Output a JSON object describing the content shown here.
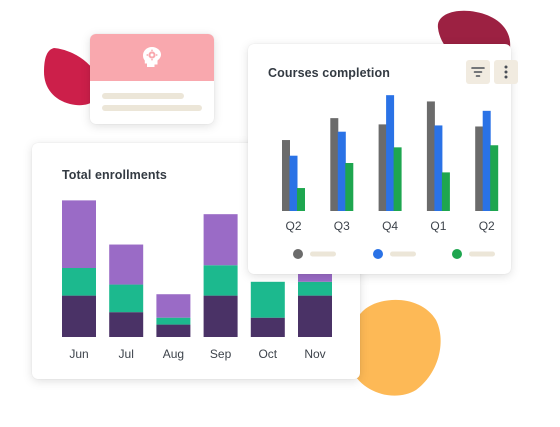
{
  "colors": {
    "blob_crimson": "#cc1f4a",
    "blob_maroon": "#9c2142",
    "blob_orange": "#fdb956",
    "profile_header": "#f9a8ae",
    "placeholder_line": "#ece6d8",
    "icon_bg": "#f1ebe0",
    "stack_dark": "#4a3266",
    "stack_teal": "#1cb98e",
    "stack_lavender": "#9a6bc6",
    "bar_gray": "#6b6b6b",
    "bar_blue": "#2a72e6",
    "bar_green": "#1ea64f"
  },
  "profile_card": {
    "icon": "head-gear-icon"
  },
  "enrollments": {
    "title": "Total enrollments",
    "chart_data": {
      "type": "bar",
      "stacked": true,
      "categories": [
        "Jun",
        "Jul",
        "Aug",
        "Sep",
        "Oct",
        "Nov"
      ],
      "series": [
        {
          "color": "#4a3266",
          "values": [
            30,
            18,
            9,
            30,
            14,
            30
          ]
        },
        {
          "color": "#1cb98e",
          "values": [
            20,
            20,
            5,
            22,
            26,
            10
          ]
        },
        {
          "color": "#9a6bc6",
          "values": [
            49,
            29,
            17,
            37,
            0,
            6
          ]
        }
      ],
      "ylim": [
        0,
        100
      ],
      "grid": false,
      "legend": "none"
    }
  },
  "completion": {
    "title": "Courses completion",
    "filter_icon": "filter-icon",
    "more_icon": "more-vertical-icon",
    "chart_data": {
      "type": "bar",
      "categories": [
        "Q2",
        "Q3",
        "Q4",
        "Q1",
        "Q2"
      ],
      "series": [
        {
          "color": "#6b6b6b",
          "values": [
            68,
            89,
            83,
            105,
            81
          ]
        },
        {
          "color": "#2a72e6",
          "values": [
            53,
            76,
            111,
            82,
            96
          ]
        },
        {
          "color": "#1ea64f",
          "values": [
            22,
            46,
            61,
            37,
            63
          ]
        }
      ],
      "ylim": [
        0,
        115
      ],
      "grid": false,
      "legend": "bottom"
    }
  }
}
